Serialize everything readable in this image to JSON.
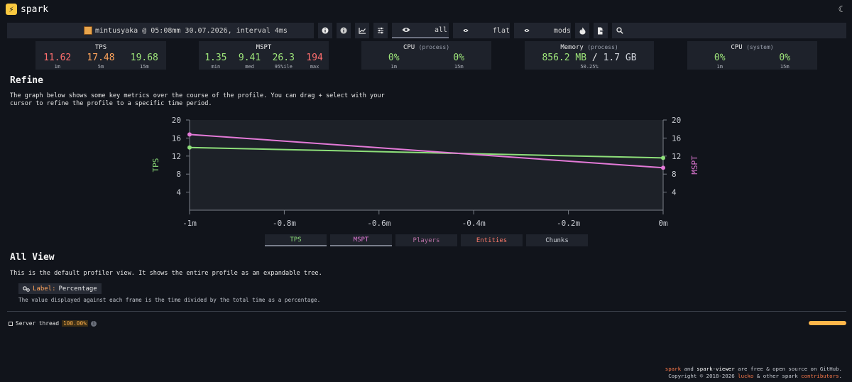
{
  "app": {
    "name": "spark",
    "logo_glyph": "⚡"
  },
  "header": {
    "theme_icon": "moon-icon",
    "theme_glyph": "☾"
  },
  "infobar": {
    "meta": "mintusyaka @ 05:08mm 30.07.2026, interval 4ms",
    "modes": [
      {
        "label": "all",
        "active": true
      },
      {
        "label": "flat",
        "active": false
      },
      {
        "label": "mods",
        "active": false
      }
    ]
  },
  "stats": {
    "tps": {
      "title": "TPS",
      "values": [
        {
          "value": "11.62",
          "label": "1m"
        },
        {
          "value": "17.48",
          "label": "5m"
        },
        {
          "value": "19.68",
          "label": "15m"
        }
      ]
    },
    "mspt": {
      "title": "MSPT",
      "values": [
        {
          "value": "1.35",
          "label": "min"
        },
        {
          "value": "9.41",
          "label": "med"
        },
        {
          "value": "26.3",
          "label": "95%ile"
        },
        {
          "value": "194",
          "label": "max"
        }
      ]
    },
    "cpu_process": {
      "title": "CPU",
      "sub": "(process)",
      "values": [
        {
          "value": "0%",
          "label": "1m"
        },
        {
          "value": "0%",
          "label": "15m"
        }
      ]
    },
    "memory": {
      "title": "Memory",
      "sub": "(process)",
      "used": "856.2 MB",
      "total": "1.7 GB",
      "percent": "50.25%"
    },
    "cpu_system": {
      "title": "CPU",
      "sub": "(system)",
      "values": [
        {
          "value": "0%",
          "label": "1m"
        },
        {
          "value": "0%",
          "label": "15m"
        }
      ]
    }
  },
  "refine": {
    "title": "Refine",
    "desc_line1": "The graph below shows some key metrics over the course of the profile. You can drag + select with your",
    "desc_line2": "cursor to refine the profile to a specific time period."
  },
  "chart_data": {
    "type": "line",
    "x": [
      "-1m",
      "-0.8m",
      "-0.6m",
      "-0.4m",
      "-0.2m",
      "0m"
    ],
    "x_values": [
      -1,
      -0.8,
      -0.6,
      -0.4,
      -0.2,
      0
    ],
    "series": [
      {
        "name": "TPS",
        "color": "#8ee07a",
        "x": [
          -1,
          0
        ],
        "values": [
          13.9,
          11.6
        ]
      },
      {
        "name": "MSPT",
        "color": "#e47ad8",
        "x": [
          -1,
          0
        ],
        "values": [
          16.8,
          9.4
        ]
      }
    ],
    "ylabel_left": "TPS",
    "ylabel_right": "MSPT",
    "y_ticks": [
      "4",
      "8",
      "12",
      "16",
      "20"
    ],
    "ylim": [
      0,
      20
    ],
    "xlim": [
      -1,
      0
    ]
  },
  "toggles": [
    {
      "label": "TPS",
      "color": "#8ee07a",
      "on": true
    },
    {
      "label": "MSPT",
      "color": "#e47ad8",
      "on": true
    },
    {
      "label": "Players",
      "color": "#b86fa4",
      "on": false
    },
    {
      "label": "Entities",
      "color": "#ff7a6a",
      "on": false
    },
    {
      "label": "Chunks",
      "color": "#cfd3da",
      "on": false
    }
  ],
  "all_view": {
    "title": "All View",
    "desc": "This is the default profiler view. It shows the entire profile as an expandable tree.",
    "label_key": "Label:",
    "label_value": "Percentage",
    "note": "The value displayed against each frame is the time divided by the total time as a percentage."
  },
  "thread": {
    "name": "Server thread",
    "percent": "100.00%",
    "fill": 1.0
  },
  "footer": {
    "spark": "spark",
    "and": "and",
    "viewer": "spark-viewer",
    "line1_rest": "are free & open source on GitHub.",
    "copyright": "Copyright © 2018-2026",
    "lucko": "lucko",
    "others": "& other spark",
    "contributors": "contributors",
    "dot": "."
  }
}
